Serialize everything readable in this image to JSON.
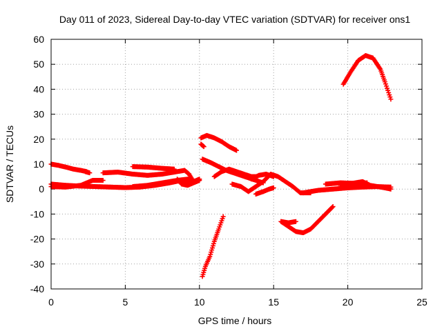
{
  "chart_data": {
    "type": "scatter",
    "title": "Day 011 of 2023, Sidereal Day-to-day VTEC variation (SDTVAR) for receiver ons1",
    "xlabel": "GPS time / hours",
    "ylabel": "SDTVAR / TECUs",
    "xlim": [
      0,
      25
    ],
    "ylim": [
      -40,
      60
    ],
    "xticks": [
      0,
      5,
      10,
      15,
      20,
      25
    ],
    "yticks": [
      -40,
      -30,
      -20,
      -10,
      0,
      10,
      20,
      30,
      40,
      50,
      60
    ],
    "xtick_labels": [
      "0",
      "5",
      "10",
      "15",
      "20",
      "25"
    ],
    "ytick_labels": [
      "-40",
      "-30",
      "-20",
      "-10",
      "0",
      "10",
      "20",
      "30",
      "40",
      "50",
      "60"
    ],
    "grid": true,
    "marker": "plus",
    "color": "#ff0000",
    "series": [
      {
        "name": "arc-a",
        "points": [
          [
            0,
            10
          ],
          [
            0.5,
            9.5
          ],
          [
            1,
            8.8
          ],
          [
            1.5,
            8
          ],
          [
            2,
            7.5
          ],
          [
            2.4,
            7
          ]
        ]
      },
      {
        "name": "arc-a2",
        "points": [
          [
            2.3,
            7
          ],
          [
            2.6,
            6.5
          ]
        ]
      },
      {
        "name": "arc-b",
        "points": [
          [
            0,
            2
          ],
          [
            1,
            1.5
          ],
          [
            2,
            1.2
          ],
          [
            3,
            1
          ],
          [
            4,
            0.8
          ],
          [
            5,
            0.6
          ],
          [
            6,
            0.8
          ],
          [
            7,
            1.5
          ],
          [
            8,
            2.5
          ],
          [
            8.8,
            3.5
          ],
          [
            9.3,
            3
          ]
        ]
      },
      {
        "name": "arc-c",
        "points": [
          [
            0,
            1
          ],
          [
            1,
            0.8
          ],
          [
            2,
            1.5
          ],
          [
            2.8,
            3.5
          ],
          [
            3.5,
            3.5
          ]
        ]
      },
      {
        "name": "arc-d",
        "points": [
          [
            3.5,
            6.5
          ],
          [
            4.5,
            6.8
          ],
          [
            5.5,
            6
          ],
          [
            6.5,
            5.5
          ],
          [
            7.5,
            6
          ],
          [
            8.5,
            7
          ],
          [
            9,
            7.5
          ],
          [
            9.3,
            6
          ],
          [
            9.6,
            3
          ],
          [
            10,
            4
          ]
        ]
      },
      {
        "name": "arc-e",
        "points": [
          [
            5.5,
            1
          ],
          [
            6.5,
            1.5
          ],
          [
            7.5,
            2.5
          ],
          [
            8.5,
            3.5
          ],
          [
            9.2,
            4
          ],
          [
            9.8,
            3
          ]
        ]
      },
      {
        "name": "arc-f",
        "points": [
          [
            5.5,
            9
          ],
          [
            6.5,
            8.8
          ],
          [
            7.5,
            8.3
          ],
          [
            8.3,
            8
          ]
        ]
      },
      {
        "name": "arc-g",
        "points": [
          [
            8.5,
            4
          ],
          [
            8.8,
            2
          ],
          [
            9.2,
            1.5
          ],
          [
            9.6,
            2.5
          ],
          [
            10,
            3.5
          ]
        ]
      },
      {
        "name": "arc-h",
        "points": [
          [
            10.1,
            18
          ],
          [
            10.3,
            17
          ]
        ]
      },
      {
        "name": "arc-i",
        "points": [
          [
            10.1,
            20.5
          ],
          [
            10.5,
            21.5
          ],
          [
            11,
            20.5
          ],
          [
            11.5,
            19
          ],
          [
            12,
            17
          ],
          [
            12.5,
            15.5
          ]
        ]
      },
      {
        "name": "arc-j",
        "points": [
          [
            10.2,
            -35
          ],
          [
            10.4,
            -31
          ],
          [
            10.7,
            -27
          ],
          [
            11,
            -21
          ],
          [
            11.3,
            -16
          ],
          [
            11.6,
            -11
          ]
        ]
      },
      {
        "name": "arc-k",
        "points": [
          [
            10.2,
            12
          ],
          [
            10.8,
            10.5
          ],
          [
            11.3,
            9
          ],
          [
            11.8,
            7.5
          ],
          [
            12.3,
            6.5
          ],
          [
            12.8,
            5.5
          ],
          [
            13.3,
            4.5
          ],
          [
            13.8,
            3.5
          ],
          [
            14.3,
            2.5
          ]
        ]
      },
      {
        "name": "arc-l",
        "points": [
          [
            11,
            5
          ],
          [
            11.5,
            7
          ],
          [
            12,
            8
          ],
          [
            12.5,
            7
          ],
          [
            13,
            6
          ],
          [
            13.5,
            5
          ],
          [
            13.8,
            5
          ]
        ]
      },
      {
        "name": "arc-m",
        "points": [
          [
            12.2,
            2
          ],
          [
            12.8,
            1
          ],
          [
            13.3,
            -1
          ],
          [
            13.8,
            1
          ],
          [
            14.3,
            3
          ],
          [
            14.8,
            6
          ],
          [
            15.3,
            5
          ],
          [
            15.8,
            3
          ],
          [
            16.3,
            1
          ],
          [
            16.8,
            -1.5
          ],
          [
            17.5,
            -1.5
          ]
        ]
      },
      {
        "name": "arc-n",
        "points": [
          [
            13.5,
            4
          ],
          [
            14,
            5.5
          ],
          [
            14.5,
            6
          ],
          [
            15,
            5
          ]
        ]
      },
      {
        "name": "arc-o",
        "points": [
          [
            13.8,
            -2
          ],
          [
            14.3,
            -1
          ],
          [
            14.7,
            0
          ],
          [
            15,
            0.5
          ]
        ]
      },
      {
        "name": "arc-p",
        "points": [
          [
            15.5,
            -13
          ],
          [
            16,
            -13.5
          ],
          [
            16.5,
            -13
          ]
        ]
      },
      {
        "name": "arc-q",
        "points": [
          [
            15.5,
            -13
          ],
          [
            16,
            -15
          ],
          [
            16.5,
            -17
          ],
          [
            17,
            -17.5
          ],
          [
            17.5,
            -16
          ],
          [
            18,
            -13
          ],
          [
            18.5,
            -10
          ],
          [
            19,
            -7
          ]
        ]
      },
      {
        "name": "arc-r",
        "points": [
          [
            17,
            -1.5
          ],
          [
            18,
            -0.5
          ],
          [
            19,
            0
          ],
          [
            20,
            0.5
          ],
          [
            21,
            0.8
          ],
          [
            22,
            1
          ],
          [
            22.9,
            0.8
          ]
        ]
      },
      {
        "name": "arc-s",
        "points": [
          [
            18.5,
            2
          ],
          [
            19.5,
            2.5
          ],
          [
            20.5,
            2.3
          ],
          [
            21.3,
            2.5
          ]
        ]
      },
      {
        "name": "arc-t",
        "points": [
          [
            19.5,
            1.5
          ],
          [
            20.5,
            2.5
          ],
          [
            21,
            3
          ],
          [
            21.5,
            1.5
          ],
          [
            22.5,
            0.5
          ],
          [
            22.9,
            0
          ]
        ]
      },
      {
        "name": "arc-u",
        "points": [
          [
            19.7,
            42
          ],
          [
            20.2,
            47
          ],
          [
            20.7,
            51.5
          ],
          [
            21.2,
            53.5
          ],
          [
            21.7,
            52.5
          ],
          [
            22.2,
            48
          ],
          [
            22.5,
            43
          ],
          [
            22.9,
            36
          ]
        ]
      }
    ]
  }
}
